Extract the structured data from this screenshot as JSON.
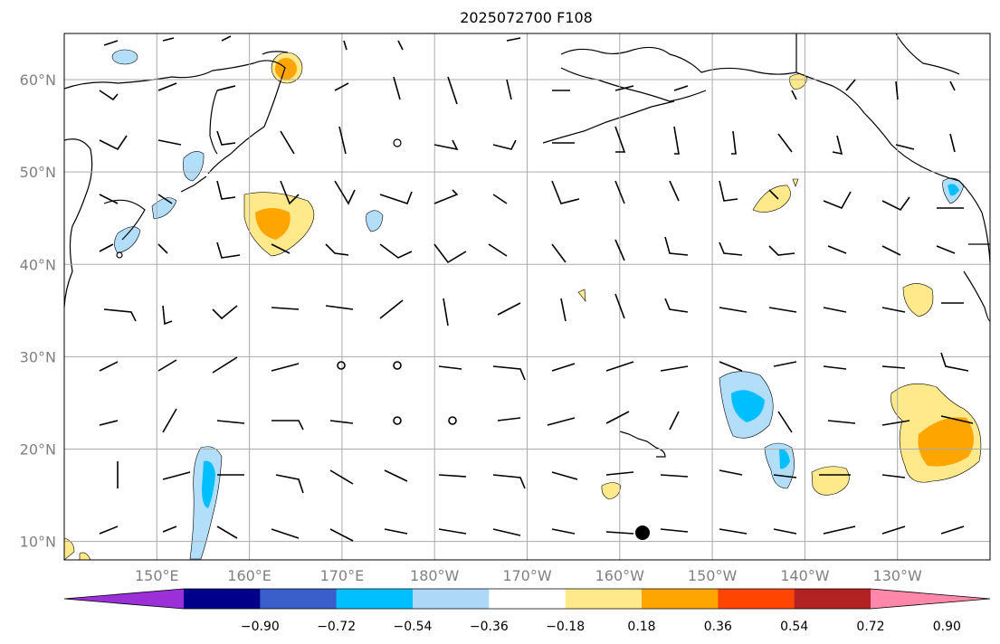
{
  "title": "2025072700 F108",
  "map": {
    "lat_labels": [
      "60°N",
      "50°N",
      "40°N",
      "30°N",
      "20°N",
      "10°N"
    ],
    "lon_labels": [
      "150°E",
      "160°E",
      "170°E",
      "180°W",
      "170°W",
      "160°W",
      "150°W",
      "140°W",
      "130°W"
    ],
    "lon_range": [
      140,
      240
    ],
    "lat_range": [
      8,
      65
    ],
    "grid": true
  },
  "colorbar": {
    "ticks": [
      "−0.90",
      "−0.72",
      "−0.54",
      "−0.36",
      "−0.18",
      "0.18",
      "0.36",
      "0.54",
      "0.72",
      "0.90"
    ],
    "colors": [
      "#9b30d9",
      "#00008b",
      "#3a5fcd",
      "#00bfff",
      "#add8f7",
      "#ffffff",
      "#ffe98a",
      "#ffa500",
      "#ff4500",
      "#b22222",
      "#ff88aa"
    ]
  },
  "colors": {
    "land_line": "#000000",
    "grid_line": "#aaaaaa",
    "label": "#808080",
    "light_blue": "#b3def9",
    "blue": "#00bfff",
    "yellow": "#ffe98a",
    "orange": "#ffa500"
  }
}
